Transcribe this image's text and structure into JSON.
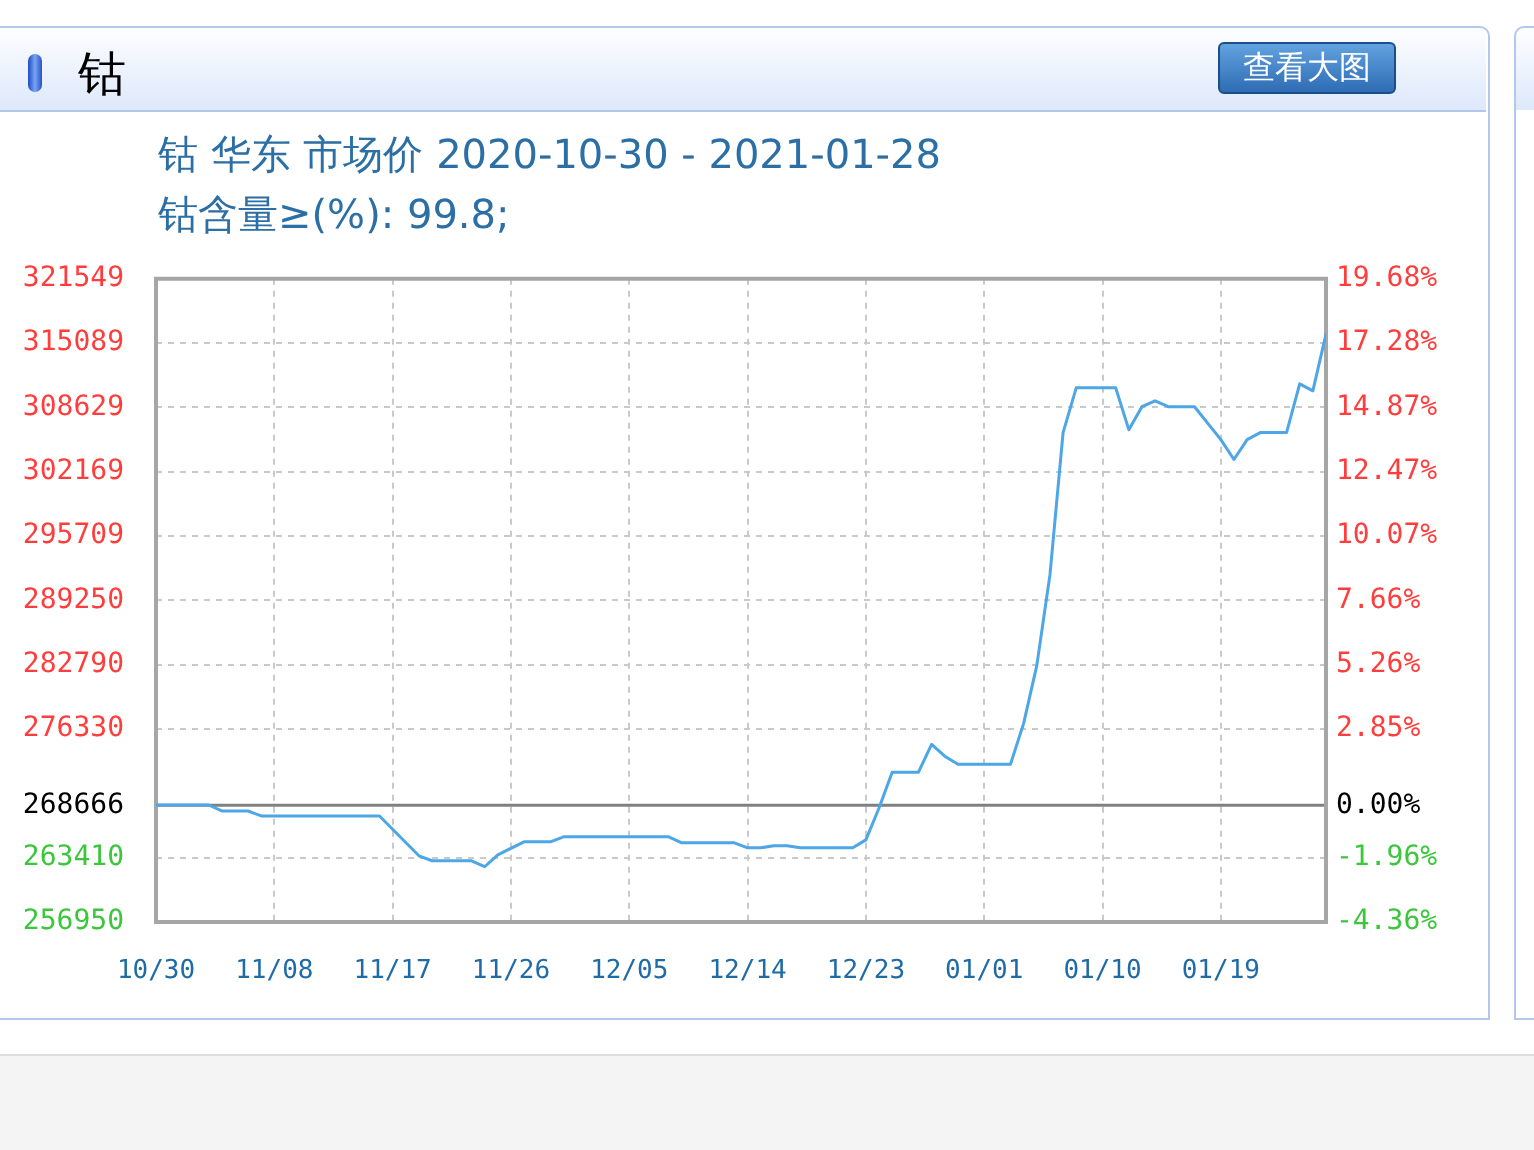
{
  "chart_data": {
    "type": "line",
    "title": "钴 华东 市场价 2020-10-30 - 2021-01-28",
    "subtitle": "钴含量≥(%): 99.8;",
    "annotations": [
      "钴",
      "查看大图"
    ],
    "x": [
      "2020-10-30",
      "2020-11-03",
      "2020-11-04",
      "2020-11-06",
      "2020-11-07",
      "2020-11-16",
      "2020-11-19",
      "2020-11-20",
      "2020-11-23",
      "2020-11-24",
      "2020-11-25",
      "2020-11-27",
      "2020-11-29",
      "2020-11-30",
      "2020-12-08",
      "2020-12-09",
      "2020-12-13",
      "2020-12-14",
      "2020-12-15",
      "2020-12-16",
      "2020-12-17",
      "2020-12-18",
      "2020-12-22",
      "2020-12-23",
      "2020-12-24",
      "2020-12-25",
      "2020-12-27",
      "2020-12-28",
      "2020-12-29",
      "2020-12-30",
      "2021-01-03",
      "2021-01-04",
      "2021-01-05",
      "2021-01-06",
      "2021-01-07",
      "2021-01-08",
      "2021-01-11",
      "2021-01-12",
      "2021-01-13",
      "2021-01-14",
      "2021-01-15",
      "2021-01-17",
      "2021-01-19",
      "2021-01-20",
      "2021-01-21",
      "2021-01-22",
      "2021-01-24",
      "2021-01-25",
      "2021-01-26",
      "2021-01-27"
    ],
    "series": [
      {
        "color": "#4da6e6",
        "values": [
          268700,
          268700,
          268100,
          268100,
          267600,
          267600,
          263600,
          263100,
          263100,
          262500,
          263700,
          265000,
          265000,
          265500,
          265500,
          264900,
          264900,
          264400,
          264400,
          264600,
          264600,
          264400,
          264400,
          265200,
          268400,
          272000,
          272000,
          274800,
          273600,
          272800,
          272800,
          276900,
          282700,
          291800,
          306100,
          310600,
          310600,
          306400,
          308700,
          309300,
          308700,
          308700,
          305400,
          303400,
          305400,
          306100,
          306100,
          311000,
          310300,
          316000
        ]
      }
    ],
    "xlim": [
      "2020-10-30",
      "2021-01-27"
    ],
    "xticks": [
      {
        "value": "2020-10-30",
        "label": "10/30"
      },
      {
        "value": "2020-11-08",
        "label": "11/08"
      },
      {
        "value": "2020-11-17",
        "label": "11/17"
      },
      {
        "value": "2020-11-26",
        "label": "11/26"
      },
      {
        "value": "2020-12-05",
        "label": "12/05"
      },
      {
        "value": "2020-12-14",
        "label": "12/14"
      },
      {
        "value": "2020-12-23",
        "label": "12/23"
      },
      {
        "value": "2021-01-01",
        "label": "01/01"
      },
      {
        "value": "2021-01-10",
        "label": "01/10"
      },
      {
        "value": "2021-01-19",
        "label": "01/19"
      }
    ],
    "ylim": [
      256950,
      321549
    ],
    "yticks": [
      256950,
      263410,
      268666,
      276330,
      282790,
      289250,
      295709,
      302169,
      308629,
      315089,
      321549
    ],
    "y2lim": [
      -4.36,
      19.68
    ],
    "y2ticks": [
      {
        "value": -4.36,
        "label": "-4.36%"
      },
      {
        "value": -1.96,
        "label": "-1.96%"
      },
      {
        "value": 0,
        "label": "0.00%"
      },
      {
        "value": 2.85,
        "label": "2.85%"
      },
      {
        "value": 5.26,
        "label": "5.26%"
      },
      {
        "value": 7.66,
        "label": "7.66%"
      },
      {
        "value": 10.07,
        "label": "10.07%"
      },
      {
        "value": 12.47,
        "label": "12.47%"
      },
      {
        "value": 14.87,
        "label": "14.87%"
      },
      {
        "value": 17.28,
        "label": "17.28%"
      },
      {
        "value": 19.68,
        "label": "19.68%"
      }
    ],
    "ref_lines": [
      {
        "axis": "y",
        "value": 268666,
        "color": "#808080"
      }
    ],
    "grid": true,
    "marker": "none"
  }
}
